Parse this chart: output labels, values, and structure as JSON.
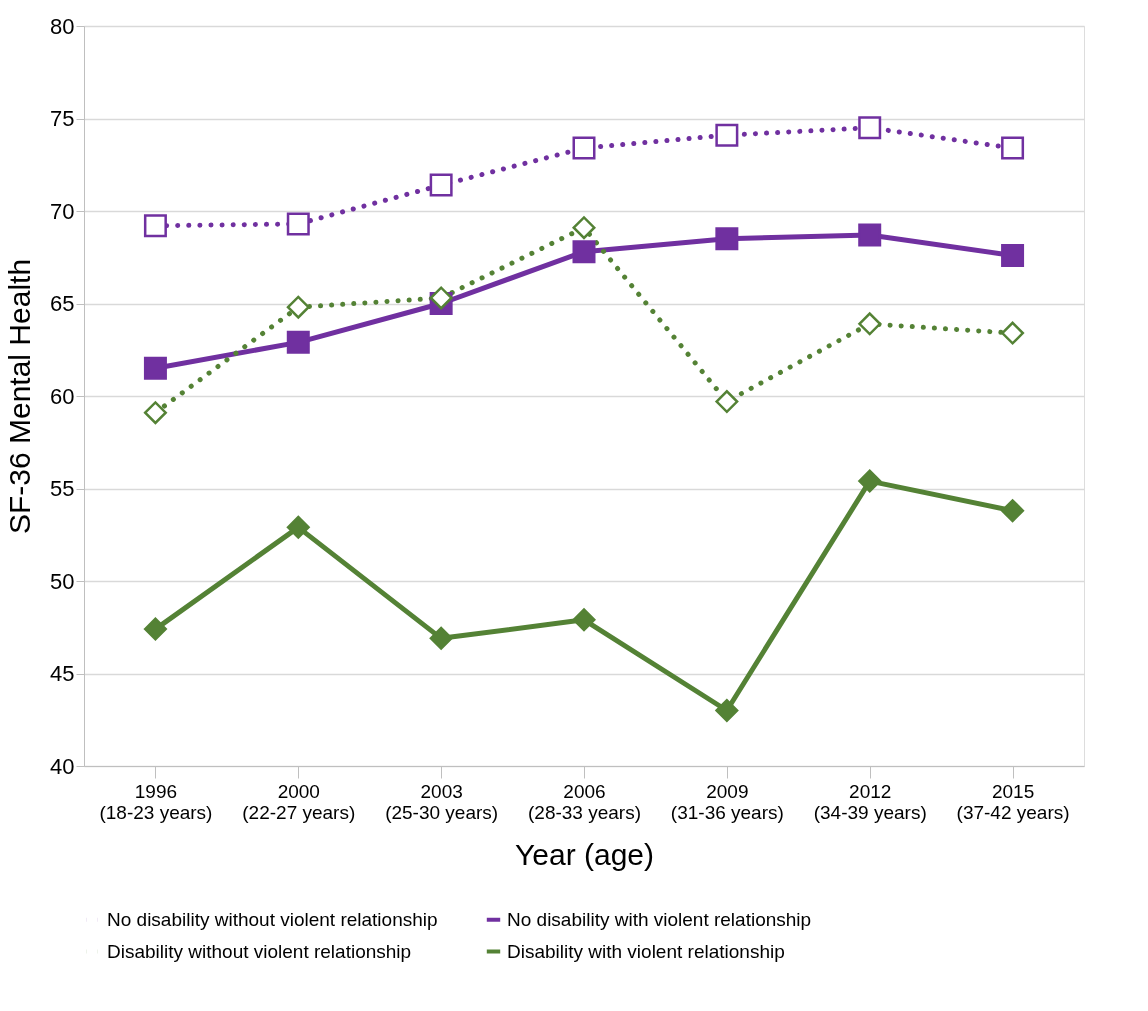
{
  "chart_data": {
    "type": "line",
    "xlabel": "Year (age)",
    "ylabel": "SF-36 Mental Health",
    "categories": [
      "1996\n(18-23 years)",
      "2000\n(22-27 years)",
      "2003\n(25-30 years)",
      "2006\n(28-33 years)",
      "2009\n(31-36 years)",
      "2012\n(34-39 years)",
      "2015\n(37-42 years)"
    ],
    "series": [
      {
        "name": "No disability without violent relationship",
        "color": "#7030a0",
        "marker": "square",
        "line_style": "dotted",
        "values": [
          69.2,
          69.3,
          71.4,
          73.4,
          74.1,
          74.5,
          73.4
        ]
      },
      {
        "name": "No disability with violent relationship",
        "color": "#7030a0",
        "marker": "square",
        "line_style": "solid",
        "values": [
          61.5,
          62.9,
          65.0,
          67.8,
          68.5,
          68.7,
          67.6
        ]
      },
      {
        "name": "Disability without violent relationship",
        "color": "#548235",
        "marker": "diamond",
        "line_style": "dotted",
        "values": [
          59.1,
          64.8,
          65.3,
          69.1,
          59.7,
          63.9,
          63.4
        ]
      },
      {
        "name": "Disability with violent relationship",
        "color": "#548235",
        "marker": "diamond",
        "line_style": "solid",
        "values": [
          47.4,
          52.9,
          46.9,
          47.9,
          43.0,
          55.4,
          53.8
        ]
      }
    ],
    "ylim": [
      40,
      80
    ],
    "yticks": [
      40,
      45,
      50,
      55,
      60,
      65,
      70,
      75,
      80
    ],
    "grid": "y",
    "legend": "bottom"
  }
}
